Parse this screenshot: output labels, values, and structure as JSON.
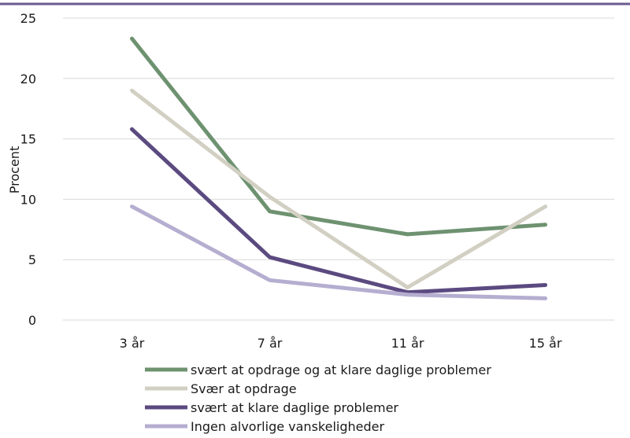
{
  "chart_data": {
    "type": "line",
    "title": "",
    "xlabel": "",
    "ylabel": "Procent",
    "ylim": [
      0,
      25
    ],
    "yticks": [
      "0",
      "5",
      "10",
      "15",
      "20",
      "25"
    ],
    "grid": true,
    "legend_position": "bottom",
    "categories": [
      "3 år",
      "7 år",
      "11 år",
      "15 år"
    ],
    "series": [
      {
        "name": "svært at opdrage og at klare daglige problemer",
        "color": "#6e9270",
        "values": [
          23.3,
          9.0,
          7.1,
          7.9
        ]
      },
      {
        "name": "Svær at opdrage",
        "color": "#d2cfc3",
        "values": [
          19.0,
          10.2,
          2.7,
          9.4
        ]
      },
      {
        "name": "svært at klare daglige problemer",
        "color": "#5b4a80",
        "values": [
          15.8,
          5.2,
          2.3,
          2.9
        ]
      },
      {
        "name": "Ingen alvorlige vanskeligheder",
        "color": "#b5aed0",
        "values": [
          9.4,
          3.3,
          2.1,
          1.8
        ]
      }
    ]
  },
  "colors": {
    "top_rule": "#6a5a8f",
    "grid": "#d9d9d9"
  }
}
